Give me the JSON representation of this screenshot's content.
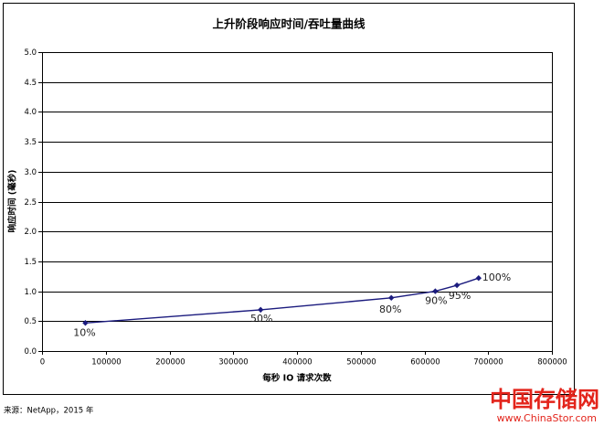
{
  "chart_data": {
    "type": "line",
    "title": "上升阶段响应时间/吞吐量曲线",
    "xlabel": "每秒 IO 请求次数",
    "ylabel": "响应时间 (毫秒)",
    "xlim": [
      0,
      800000
    ],
    "ylim": [
      0,
      5.0
    ],
    "x_ticks": [
      "0",
      "100000",
      "200000",
      "300000",
      "400000",
      "500000",
      "600000",
      "700000",
      "800000"
    ],
    "y_ticks": [
      "0.0",
      "0.5",
      "1.0",
      "1.5",
      "2.0",
      "2.5",
      "3.0",
      "3.5",
      "4.0",
      "4.5",
      "5.0"
    ],
    "grid": true,
    "series": [
      {
        "x": [
          68000,
          343000,
          548000,
          617000,
          651000,
          685000
        ],
        "y": [
          0.47,
          0.69,
          0.89,
          1.0,
          1.1,
          1.22
        ],
        "point_labels": [
          "10%",
          "50%",
          "80%",
          "90%",
          "95%",
          "100%"
        ],
        "color": "#1b1b7e"
      }
    ]
  },
  "source": "来源：NetApp，2015 年",
  "watermark": {
    "name": "中国存储网",
    "url": "www.ChinaStor.com",
    "color": "#e3241b"
  }
}
